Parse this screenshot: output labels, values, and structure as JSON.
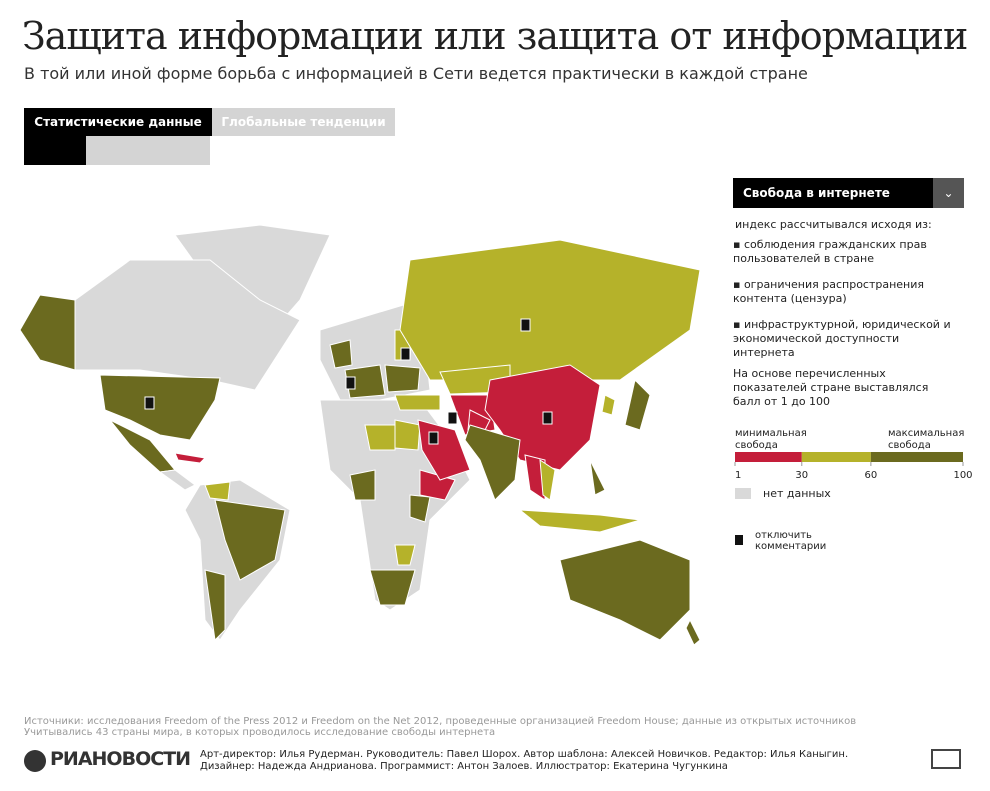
{
  "header": {
    "title": "Защита информации или защита от информации",
    "subtitle": "В той или иной форме борьба с информацией в Сети ведется практически в каждой стране"
  },
  "tabs": [
    "Статистические данные",
    "Глобальные тенденции"
  ],
  "dropdown": "Свобода в интернете",
  "legend": {
    "intro": "индекс рассчитывался исходя из:",
    "bullets": [
      "соблюдения гражданских прав пользователей в стране",
      "ограничения распространения контента (цензура)",
      "инфраструктурной, юридической и экономической доступности интернета"
    ],
    "note": "На основе перечисленных показателей стране выставлялся балл от 1 до 100",
    "min_label": "минимальная свобода",
    "max_label": "максимальная свобода",
    "scale": {
      "ticks": [
        1,
        30,
        60,
        100
      ],
      "colors": [
        "#c41e3a",
        "#b5b22a",
        "#6b6a1f"
      ]
    },
    "no_data": "нет данных",
    "no_data_color": "#d9d9d9",
    "comments": "отключить комментарии"
  },
  "footer": {
    "sources": "Источники: исследования Freedom of the Press 2012 и Freedom on the Net 2012, проведенные организацией Freedom House; данные из открытых источников",
    "countries_note": "Учитывались 43 страны мира, в которых проводилось исследование свободы интернета",
    "logo": "РИАНОВОСТИ",
    "credits1": "Арт-директор: Илья Рудерман. Руководитель: Павел Шорох. Автор шаблона: Алексей Новичков. Редактор: Илья Каныгин.",
    "credits2": "Дизайнер: Надежда Андрианова. Программист: Антон Залоев. Иллюстратор: Екатерина Чугункина"
  }
}
